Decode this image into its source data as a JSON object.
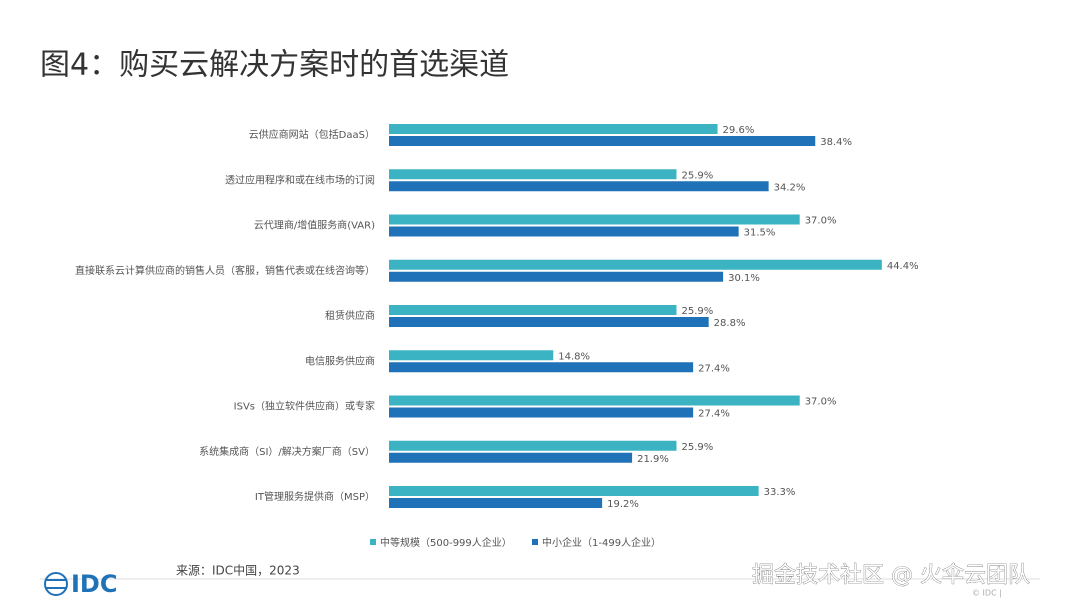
{
  "chart_data": {
    "type": "hbar",
    "title": "图4：购买云解决方案时的首选渠道",
    "categories": [
      "云供应商网站（包括DaaS）",
      "透过应用程序和或在线市场的订阅",
      "云代理商/增值服务商(VAR)",
      "直接联系云计算供应商的销售人员（客服，销售代表或在线咨询等）",
      "租赁供应商",
      "电信服务供应商",
      "ISVs（独立软件供应商）或专家",
      "系统集成商（SI）/解决方案厂商（SV）",
      "IT管理服务提供商（MSP）"
    ],
    "series": [
      {
        "name": "中等规模（500-999人企业）",
        "color": "#3bb3c3",
        "values": [
          29.6,
          25.9,
          37.0,
          44.4,
          25.9,
          14.8,
          37.0,
          25.9,
          33.3
        ],
        "value_labels": [
          "29.6%",
          "25.9%",
          "37.0%",
          "44.4%",
          "25.9%",
          "14.8%",
          "37.0%",
          "25.9%",
          "33.3%"
        ]
      },
      {
        "name": "中小企业（1-499人企业）",
        "color": "#1f72b8",
        "values": [
          38.4,
          34.2,
          31.5,
          30.1,
          28.8,
          27.4,
          27.4,
          21.9,
          19.2
        ],
        "value_labels": [
          "38.4%",
          "34.2%",
          "31.5%",
          "30.1%",
          "28.8%",
          "27.4%",
          "27.4%",
          "21.9%",
          "19.2%"
        ]
      }
    ],
    "legend": "bottom",
    "source": "来源：IDC中国，2023"
  },
  "footer": {
    "logo": "IDC",
    "copyright": "© IDC |",
    "watermark": "掘金技术社区 @ 火伞云团队"
  }
}
